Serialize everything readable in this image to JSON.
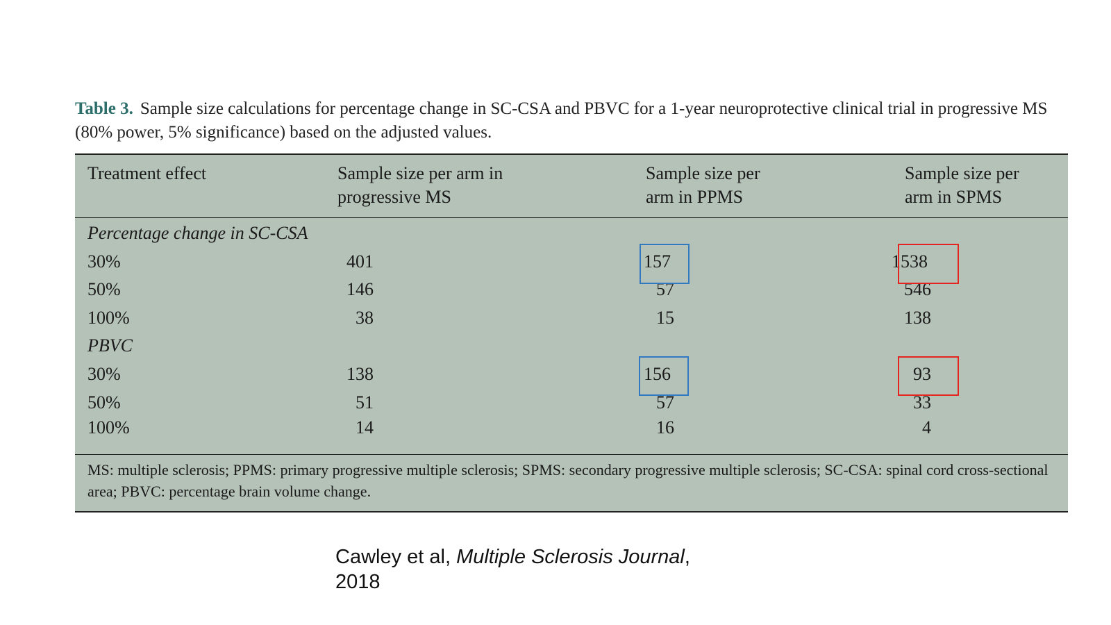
{
  "caption": {
    "label": "Table 3.",
    "text": "Sample size calculations for percentage change in SC-CSA and PBVC for a 1-year neuroprotective clinical trial in progressive MS (80% power, 5% significance) based on the adjusted values."
  },
  "table": {
    "headers": [
      "Treatment effect",
      "Sample size per arm in progressive MS",
      "Sample size per arm in PPMS",
      "Sample size per arm in SPMS"
    ],
    "sections": [
      {
        "title": "Percentage change in SC-CSA",
        "rows": [
          {
            "effect": "30%",
            "progressive": "401",
            "ppms": "157",
            "spms": "1538"
          },
          {
            "effect": "50%",
            "progressive": "146",
            "ppms": "57",
            "spms": "546"
          },
          {
            "effect": "100%",
            "progressive": "38",
            "ppms": "15",
            "spms": "138"
          }
        ]
      },
      {
        "title": "PBVC",
        "rows": [
          {
            "effect": "30%",
            "progressive": "138",
            "ppms": "156",
            "spms": "93"
          },
          {
            "effect": "50%",
            "progressive": "51",
            "ppms": "57",
            "spms": "33"
          },
          {
            "effect": "100%",
            "progressive": "14",
            "ppms": "16",
            "spms": "4"
          }
        ]
      }
    ],
    "footnote": "MS: multiple sclerosis; PPMS: primary progressive multiple sclerosis; SPMS: secondary progressive multiple sclerosis; SC-CSA: spinal cord cross-sectional area; PBVC: percentage brain volume change."
  },
  "highlight_colors": {
    "ppms_box": "#3379c2",
    "spms_box": "#e52420"
  },
  "citation": {
    "authors": "Cawley et al,",
    "journal": "Multiple Sclerosis Journal",
    "suffix": ",",
    "year": "2018"
  }
}
